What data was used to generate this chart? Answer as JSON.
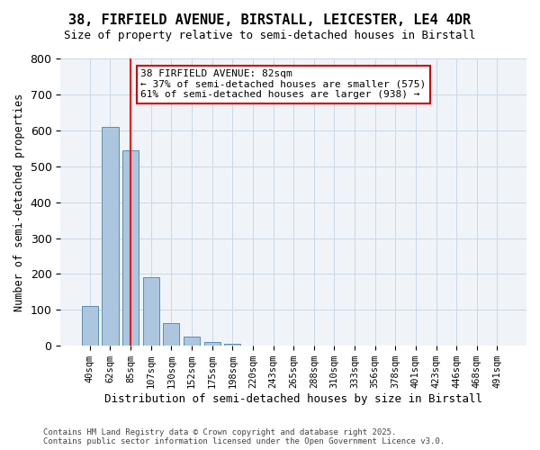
{
  "title_line1": "38, FIRFIELD AVENUE, BIRSTALL, LEICESTER, LE4 4DR",
  "title_line2": "Size of property relative to semi-detached houses in Birstall",
  "xlabel": "Distribution of semi-detached houses by size in Birstall",
  "ylabel": "Number of semi-detached properties",
  "categories": [
    "40sqm",
    "62sqm",
    "85sqm",
    "107sqm",
    "130sqm",
    "152sqm",
    "175sqm",
    "198sqm",
    "220sqm",
    "243sqm",
    "265sqm",
    "288sqm",
    "310sqm",
    "333sqm",
    "356sqm",
    "378sqm",
    "401sqm",
    "423sqm",
    "446sqm",
    "468sqm",
    "491sqm"
  ],
  "values": [
    110,
    610,
    545,
    190,
    62,
    25,
    10,
    5,
    0,
    0,
    0,
    0,
    0,
    0,
    0,
    0,
    0,
    0,
    0,
    0,
    0
  ],
  "bar_color": "#adc6e0",
  "bar_edge_color": "#5a8db5",
  "red_line_x": 2,
  "annotation_title": "38 FIRFIELD AVENUE: 82sqm",
  "annotation_line2": "← 37% of semi-detached houses are smaller (575)",
  "annotation_line3": "61% of semi-detached houses are larger (938) →",
  "annotation_box_color": "#cc0000",
  "ylim": [
    0,
    800
  ],
  "yticks": [
    0,
    100,
    200,
    300,
    400,
    500,
    600,
    700,
    800
  ],
  "footnote1": "Contains HM Land Registry data © Crown copyright and database right 2025.",
  "footnote2": "Contains public sector information licensed under the Open Government Licence v3.0.",
  "bg_color": "#f0f4f8",
  "grid_color": "#c8d8e8"
}
